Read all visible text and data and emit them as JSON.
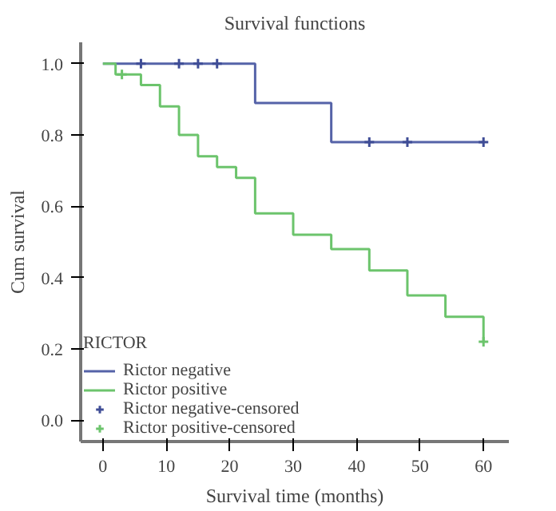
{
  "chart_data": {
    "type": "step",
    "title": "Survival functions",
    "xlabel": "Survival time (months)",
    "ylabel": "Cum survival",
    "legend_title": "RICTOR",
    "legend": "bottom left",
    "grid": false,
    "series": [
      {
        "name": "Rictor negative",
        "color": "#5563a8",
        "x": [
          0,
          24,
          36,
          60
        ],
        "values": [
          1.0,
          0.89,
          0.78,
          0.78
        ]
      },
      {
        "name": "Rictor positive",
        "color": "#6cc46c",
        "x": [
          0,
          2,
          6,
          9,
          12,
          15,
          18,
          21,
          24,
          30,
          36,
          42,
          48,
          54,
          60
        ],
        "values": [
          1.0,
          0.97,
          0.94,
          0.88,
          0.8,
          0.74,
          0.71,
          0.68,
          0.58,
          0.52,
          0.48,
          0.42,
          0.35,
          0.29,
          0.22
        ]
      },
      {
        "name": "Rictor negative-censored",
        "type": "scatter",
        "marker": "cross",
        "color": "#3f4d96",
        "x": [
          6,
          12,
          15,
          18,
          42,
          48,
          60
        ],
        "values": [
          1.0,
          1.0,
          1.0,
          1.0,
          0.78,
          0.78,
          0.78
        ]
      },
      {
        "name": "Rictor positive-censored",
        "type": "scatter",
        "marker": "cross",
        "color": "#6cc46c",
        "x": [
          3,
          60
        ],
        "values": [
          0.97,
          0.22
        ]
      }
    ],
    "xlim": [
      -3.5,
      64
    ],
    "ylim": [
      -0.06,
      1.06
    ],
    "xticks": [
      0,
      10,
      20,
      30,
      40,
      50,
      60
    ],
    "yticks": [
      {
        "value": 0,
        "label": "0.0"
      },
      {
        "value": 0.2,
        "label": "0.2"
      },
      {
        "value": 0.4,
        "label": "0.4"
      },
      {
        "value": 0.6,
        "label": "0.6"
      },
      {
        "value": 0.8,
        "label": "0.8"
      },
      {
        "value": 1,
        "label": "1.0"
      }
    ]
  }
}
